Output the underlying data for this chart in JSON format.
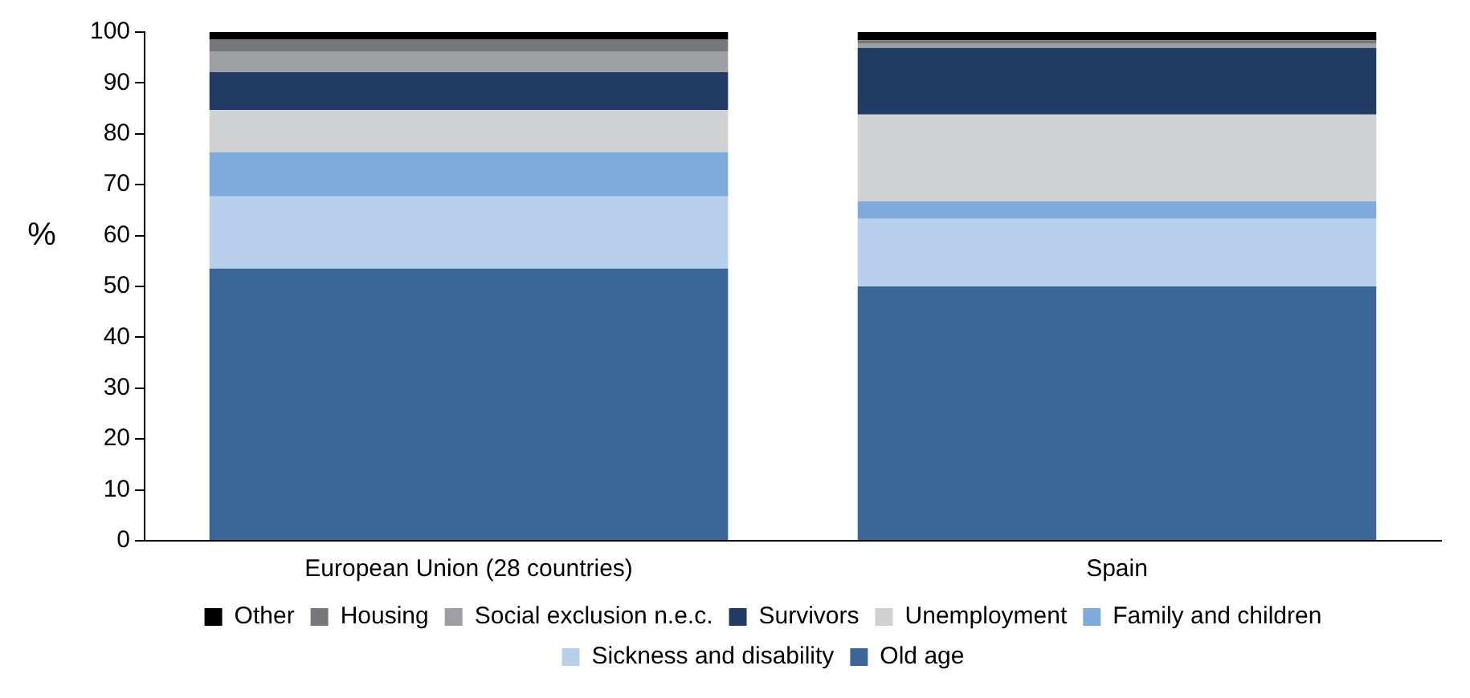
{
  "chart_data": {
    "type": "bar",
    "stacked": true,
    "ylabel": "%",
    "categories": [
      "European Union (28 countries)",
      "Spain"
    ],
    "series": [
      {
        "name": "Old age",
        "color": "#3a6698",
        "values": [
          53.5,
          50.0
        ]
      },
      {
        "name": "Sickness and disability",
        "color": "#b9d0ec",
        "values": [
          14.2,
          13.3
        ]
      },
      {
        "name": "Family and children",
        "color": "#7eabdc",
        "values": [
          8.7,
          3.4
        ]
      },
      {
        "name": "Unemployment",
        "color": "#d0d1d3",
        "values": [
          8.3,
          17.1
        ]
      },
      {
        "name": "Survivors",
        "color": "#223b64",
        "values": [
          7.4,
          13.1
        ]
      },
      {
        "name": "Social exclusion n.e.c.",
        "color": "#9d9fa2",
        "values": [
          4.1,
          0.9
        ]
      },
      {
        "name": "Housing",
        "color": "#77787b",
        "values": [
          2.3,
          0.6
        ]
      },
      {
        "name": "Other",
        "color": "#000000",
        "values": [
          1.5,
          1.6
        ]
      }
    ],
    "ylim": [
      0,
      100
    ],
    "yticks": [
      0,
      10,
      20,
      30,
      40,
      50,
      60,
      70,
      80,
      90,
      100
    ],
    "grid": false,
    "legend": "bottom"
  }
}
